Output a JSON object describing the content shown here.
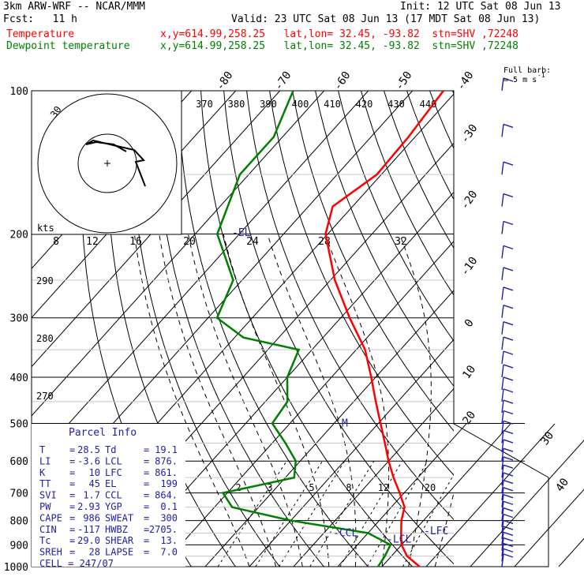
{
  "header": {
    "model": "3km ARW-WRF -- NCAR/MMM",
    "init": "Init: 12 UTC Sat 08 Jun 13",
    "fcst": "Fcst:   11 h",
    "valid": "Valid: 23 UTC Sat 08 Jun 13 (17 MDT Sat 08 Jun 13)",
    "temp_label": "Temperature",
    "temp_info": "x,y=614.99,258.25   lat,lon= 32.45, -93.82  stn=SHV ,72248",
    "dew_label": "Dewpoint temperature",
    "dew_info": "x,y=614.99,258.25   lat,lon= 32.45, -93.82  stn=SHV ,72248"
  },
  "colors": {
    "temperature": "#ff0000",
    "dewpoint": "#008000",
    "barbs": "#2020aa",
    "grid": "#000000"
  },
  "chart_data": {
    "type": "line",
    "subtype": "skew-T log-P diagram",
    "y_scale": "log pressure",
    "ylim_hPa": [
      1000,
      100
    ],
    "pressure_levels": [
      "100",
      "200",
      "300",
      "400",
      "500",
      "600",
      "700",
      "800",
      "900",
      "1000"
    ],
    "isotherm_labels": [
      "-80",
      "-70",
      "-60",
      "-50",
      "-40",
      "-30",
      "-20",
      "-10",
      "0",
      "10",
      "20",
      "30",
      "40"
    ],
    "theta_labels": [
      "370",
      "380",
      "390",
      "400",
      "410",
      "420",
      "430",
      "440",
      "290",
      "280",
      "270"
    ],
    "mixing_ratio_labels": [
      "2",
      "3",
      "5",
      "8",
      "12",
      "20"
    ],
    "series": [
      {
        "name": "Temperature",
        "color": "#ff0000",
        "points": [
          {
            "p": 1000,
            "t": 28.5
          },
          {
            "p": 950,
            "t": 23.5
          },
          {
            "p": 900,
            "t": 20.0
          },
          {
            "p": 850,
            "t": 17.5
          },
          {
            "p": 800,
            "t": 15.0
          },
          {
            "p": 750,
            "t": 13.0
          },
          {
            "p": 700,
            "t": 9.0
          },
          {
            "p": 650,
            "t": 4.5
          },
          {
            "p": 600,
            "t": 0.0
          },
          {
            "p": 550,
            "t": -4.5
          },
          {
            "p": 500,
            "t": -9.5
          },
          {
            "p": 450,
            "t": -15.0
          },
          {
            "p": 400,
            "t": -21.0
          },
          {
            "p": 350,
            "t": -28.0
          },
          {
            "p": 300,
            "t": -38.0
          },
          {
            "p": 250,
            "t": -49.0
          },
          {
            "p": 200,
            "t": -60.5
          },
          {
            "p": 175,
            "t": -64.5
          },
          {
            "p": 150,
            "t": -61.0
          },
          {
            "p": 125,
            "t": -61.5
          },
          {
            "p": 100,
            "t": -63.0
          }
        ]
      },
      {
        "name": "Dewpoint temperature",
        "color": "#008000",
        "points": [
          {
            "p": 1000,
            "t": 19.1
          },
          {
            "p": 950,
            "t": 18.5
          },
          {
            "p": 900,
            "t": 17.5
          },
          {
            "p": 850,
            "t": 10.0
          },
          {
            "p": 800,
            "t": -10.0
          },
          {
            "p": 750,
            "t": -26.0
          },
          {
            "p": 700,
            "t": -31.0
          },
          {
            "p": 650,
            "t": -18.0
          },
          {
            "p": 600,
            "t": -21.0
          },
          {
            "p": 550,
            "t": -27.0
          },
          {
            "p": 500,
            "t": -34.0
          },
          {
            "p": 450,
            "t": -35.0
          },
          {
            "p": 400,
            "t": -40.0
          },
          {
            "p": 350,
            "t": -43.0
          },
          {
            "p": 330,
            "t": -58.0
          },
          {
            "p": 300,
            "t": -68.0
          },
          {
            "p": 250,
            "t": -72.0
          },
          {
            "p": 200,
            "t": -85.0
          },
          {
            "p": 150,
            "t": -92.0
          },
          {
            "p": 125,
            "t": -92.0
          },
          {
            "p": 100,
            "t": -97.0
          }
        ]
      }
    ],
    "markers": [
      {
        "label": "-EL",
        "p": 199
      },
      {
        "label": "M",
        "p": 500
      },
      {
        "label": "-LFC",
        "p": 861
      },
      {
        "label": "-LCL",
        "p": 876
      },
      {
        "label": "-CCL",
        "p": 864
      }
    ],
    "hodograph": {
      "ring_label": "30",
      "units_label": "kts"
    },
    "barb_legend": {
      "title": "Full barb",
      "units": "= 5 m s",
      "exponent": "-1"
    }
  },
  "parcel_info": {
    "title": "Parcel Info",
    "rows": [
      {
        "k1": "T",
        "v1": "28.5",
        "k2": "Td",
        "v2": "19.1"
      },
      {
        "k1": "LI",
        "v1": "-3.6",
        "k2": "LCL",
        "v2": "876."
      },
      {
        "k1": "K",
        "v1": "10",
        "k2": "LFC",
        "v2": "861."
      },
      {
        "k1": "TT",
        "v1": "45",
        "k2": "EL",
        "v2": "199"
      },
      {
        "k1": "SVI",
        "v1": "1.7",
        "k2": "CCL",
        "v2": "864."
      },
      {
        "k1": "PW",
        "v1": "2.93",
        "k2": "YGP",
        "v2": "0.1"
      },
      {
        "k1": "CAPE",
        "v1": "986",
        "k2": "SWEAT",
        "v2": "300"
      },
      {
        "k1": "CIN",
        "v1": "-117",
        "k2": "HWBZ",
        "v2": "2705."
      },
      {
        "k1": "Tc",
        "v1": "29.0",
        "k2": "SHEAR",
        "v2": "13."
      },
      {
        "k1": "SREH",
        "v1": "28",
        "k2": "LAPSE",
        "v2": "7.0"
      }
    ],
    "cell": "CELL = 247/07"
  }
}
